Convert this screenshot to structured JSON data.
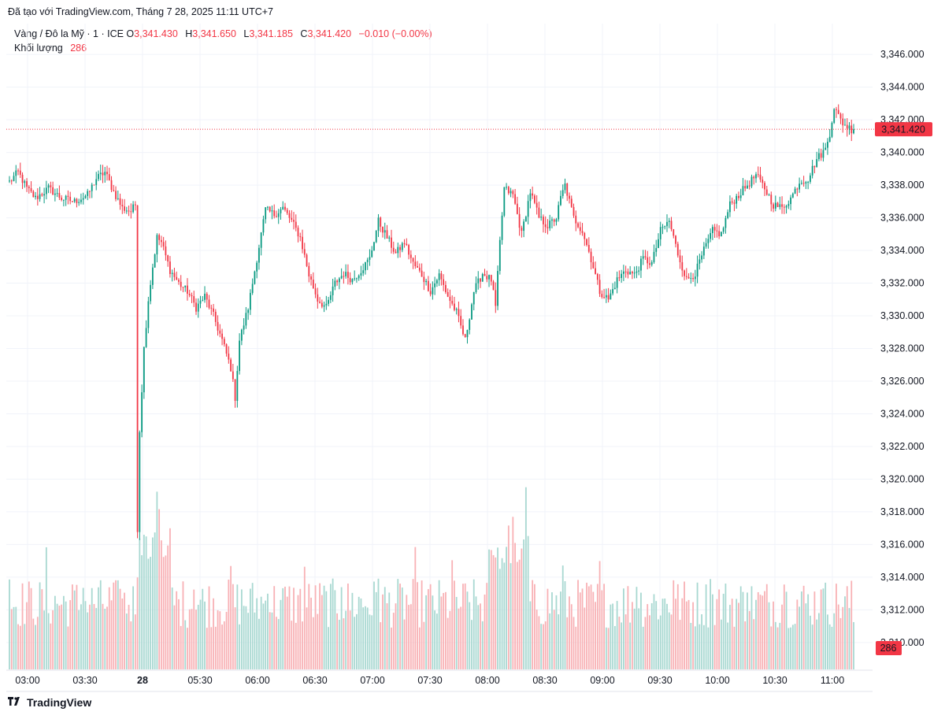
{
  "header": {
    "caption": "Đã tạo với TradingView.com, Tháng 7 28, 2025 11:11 UTC+7"
  },
  "legend": {
    "symbol": "Vàng / Đô la Mỹ · 1 · ICE",
    "o_label": "O",
    "o_value": "3,341.430",
    "h_label": "H",
    "h_value": "3,341.650",
    "l_label": "L",
    "l_value": "3,341.185",
    "c_label": "C",
    "c_value": "3,341.420",
    "change": "−0.010 (−0.00%)",
    "volume_label": "Khối lượng",
    "volume_value": "286"
  },
  "footer": {
    "brand": "TradingView"
  },
  "colors": {
    "up": "#089981",
    "down": "#f23645",
    "up_vol": "#a8d8d1",
    "down_vol": "#f8b1b5",
    "grid": "#f0f3fa"
  },
  "chart_data": {
    "type": "candlestick",
    "title": "Vàng / Đô la Mỹ · 1 · ICE",
    "ylim": [
      3308,
      3347
    ],
    "y_ticks": [
      3310,
      3312,
      3314,
      3316,
      3318,
      3320,
      3322,
      3324,
      3326,
      3328,
      3330,
      3332,
      3334,
      3336,
      3338,
      3340,
      3342,
      3344,
      3346
    ],
    "y_tick_labels": [
      "3,310.000",
      "3,312.000",
      "3,314.000",
      "3,316.000",
      "3,318.000",
      "3,320.000",
      "3,322.000",
      "3,324.000",
      "3,326.000",
      "3,328.000",
      "3,330.000",
      "3,332.000",
      "3,334.000",
      "3,336.000",
      "3,338.000",
      "3,340.000",
      "3,342.000",
      "3,344.000",
      "3,346.000"
    ],
    "x_ticks": [
      "03:00",
      "03:30",
      "28",
      "05:30",
      "06:00",
      "06:30",
      "07:00",
      "07:30",
      "08:00",
      "08:30",
      "09:00",
      "09:30",
      "10:00",
      "10:30",
      "11:00"
    ],
    "last_price_label": "3,341.420",
    "last_price": 3341.42,
    "last_volume_label": "286",
    "volume_max": 1000,
    "keypoints": [
      [
        0,
        3338.2
      ],
      [
        4,
        3338.8
      ],
      [
        8,
        3337.8
      ],
      [
        12,
        3337.2
      ],
      [
        18,
        3337.8
      ],
      [
        24,
        3337.2
      ],
      [
        30,
        3337.0
      ],
      [
        36,
        3337.4
      ],
      [
        40,
        3338.4
      ],
      [
        44,
        3338.8
      ],
      [
        48,
        3337.6
      ],
      [
        52,
        3336.6
      ],
      [
        56,
        3336.4
      ],
      [
        58,
        3336.8
      ],
      [
        59,
        3317.0
      ],
      [
        60,
        3323.0
      ],
      [
        62,
        3328.0
      ],
      [
        64,
        3331.0
      ],
      [
        66,
        3333.0
      ],
      [
        68,
        3334.8
      ],
      [
        70,
        3334.5
      ],
      [
        74,
        3332.8
      ],
      [
        78,
        3332.0
      ],
      [
        82,
        3331.5
      ],
      [
        86,
        3330.5
      ],
      [
        90,
        3331.2
      ],
      [
        94,
        3330.0
      ],
      [
        98,
        3328.5
      ],
      [
        102,
        3326.8
      ],
      [
        104,
        3325.0
      ],
      [
        106,
        3328.5
      ],
      [
        110,
        3330.5
      ],
      [
        114,
        3333.5
      ],
      [
        118,
        3336.5
      ],
      [
        122,
        3336.2
      ],
      [
        126,
        3336.6
      ],
      [
        130,
        3335.8
      ],
      [
        134,
        3334.8
      ],
      [
        138,
        3332.5
      ],
      [
        142,
        3331.0
      ],
      [
        146,
        3330.5
      ],
      [
        150,
        3332.0
      ],
      [
        154,
        3332.6
      ],
      [
        158,
        3332.2
      ],
      [
        162,
        3332.8
      ],
      [
        166,
        3333.5
      ],
      [
        170,
        3335.8
      ],
      [
        174,
        3334.8
      ],
      [
        178,
        3333.8
      ],
      [
        182,
        3334.5
      ],
      [
        186,
        3333.2
      ],
      [
        190,
        3332.5
      ],
      [
        194,
        3331.5
      ],
      [
        198,
        3332.5
      ],
      [
        202,
        3331.2
      ],
      [
        206,
        3330.2
      ],
      [
        210,
        3328.5
      ],
      [
        214,
        3331.5
      ],
      [
        218,
        3332.6
      ],
      [
        222,
        3332.2
      ],
      [
        224,
        3330.5
      ],
      [
        226,
        3334.5
      ],
      [
        228,
        3337.8
      ],
      [
        232,
        3337.4
      ],
      [
        236,
        3335.0
      ],
      [
        240,
        3337.6
      ],
      [
        244,
        3336.0
      ],
      [
        248,
        3335.5
      ],
      [
        252,
        3336.0
      ],
      [
        254,
        3337.2
      ],
      [
        256,
        3338.0
      ],
      [
        260,
        3336.0
      ],
      [
        264,
        3335.2
      ],
      [
        268,
        3333.5
      ],
      [
        272,
        3331.5
      ],
      [
        276,
        3331.0
      ],
      [
        280,
        3332.2
      ],
      [
        284,
        3332.8
      ],
      [
        288,
        3332.5
      ],
      [
        292,
        3333.5
      ],
      [
        296,
        3333.2
      ],
      [
        300,
        3335.2
      ],
      [
        304,
        3335.8
      ],
      [
        308,
        3333.8
      ],
      [
        312,
        3332.2
      ],
      [
        316,
        3332.6
      ],
      [
        320,
        3334.0
      ],
      [
        324,
        3335.2
      ],
      [
        328,
        3335.0
      ],
      [
        332,
        3336.8
      ],
      [
        336,
        3337.4
      ],
      [
        340,
        3338.0
      ],
      [
        344,
        3338.6
      ],
      [
        348,
        3337.8
      ],
      [
        352,
        3336.8
      ],
      [
        356,
        3336.6
      ],
      [
        360,
        3337.2
      ],
      [
        364,
        3338.2
      ],
      [
        368,
        3338.4
      ],
      [
        372,
        3339.6
      ],
      [
        376,
        3340.2
      ],
      [
        378,
        3341.2
      ],
      [
        380,
        3342.8
      ],
      [
        382,
        3342.2
      ],
      [
        384,
        3341.8
      ],
      [
        386,
        3341.6
      ],
      [
        388,
        3341.42
      ]
    ]
  }
}
